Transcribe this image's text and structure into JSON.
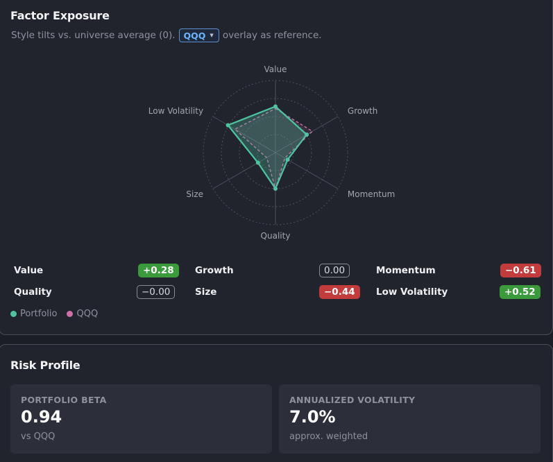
{
  "factor_exposure": {
    "title": "Factor Exposure",
    "subtitle_before": "Style tilts vs. universe average (0).",
    "overlay_selected": "QQQ",
    "subtitle_after": "overlay as reference.",
    "chart_data": {
      "type": "radar",
      "axes": [
        "Value",
        "Growth",
        "Momentum",
        "Quality",
        "Size",
        "Low Volatility"
      ],
      "series": [
        {
          "name": "Portfolio",
          "color": "#4fc4a0",
          "values": [
            0.28,
            0.0,
            -0.61,
            0.0,
            -0.44,
            0.52
          ]
        },
        {
          "name": "QQQ",
          "color": "#cf6fa9",
          "values": [
            0.22,
            0.18,
            -0.7,
            0.0,
            -0.72,
            0.3
          ]
        }
      ]
    },
    "exposures": [
      {
        "label": "Value",
        "value": "+0.28",
        "tone": "pos"
      },
      {
        "label": "Growth",
        "value": "0.00",
        "tone": "neutral"
      },
      {
        "label": "Momentum",
        "value": "−0.61",
        "tone": "neg"
      },
      {
        "label": "Quality",
        "value": "−0.00",
        "tone": "neutral"
      },
      {
        "label": "Size",
        "value": "−0.44",
        "tone": "neg"
      },
      {
        "label": "Low Volatility",
        "value": "+0.52",
        "tone": "pos"
      }
    ],
    "legend": [
      {
        "label": "Portfolio",
        "color": "#4fc4a0"
      },
      {
        "label": "QQQ",
        "color": "#cf6fa9"
      }
    ]
  },
  "risk_profile": {
    "title": "Risk Profile",
    "metrics": [
      {
        "label": "PORTFOLIO BETA",
        "value": "0.94",
        "note": "vs QQQ"
      },
      {
        "label": "ANNUALIZED VOLATILITY",
        "value": "7.0%",
        "note": "approx. weighted"
      }
    ]
  }
}
